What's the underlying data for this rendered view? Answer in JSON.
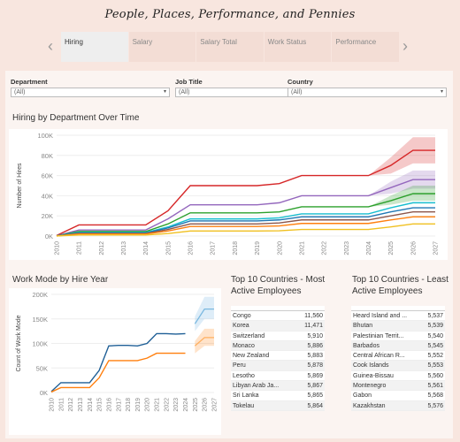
{
  "title": "People, Places, Performance, and Pennies",
  "nav": {
    "prev_icon": "‹",
    "next_icon": "›"
  },
  "tabs": [
    {
      "label": "Hiring",
      "active": true
    },
    {
      "label": "Salary",
      "active": false
    },
    {
      "label": "Salary Total",
      "active": false
    },
    {
      "label": "Work Status",
      "active": false
    },
    {
      "label": "Performance",
      "active": false
    }
  ],
  "filters": [
    {
      "label": "Department",
      "value": "(All)"
    },
    {
      "label": "Job Title",
      "value": "(All)"
    },
    {
      "label": "Country",
      "value": "(All)"
    }
  ],
  "hiring_chart": {
    "title": "Hiring by Department Over Time",
    "ylabel": "Number of Hires",
    "yticks": [
      "100K",
      "80K",
      "60K",
      "40K",
      "20K",
      "0K"
    ]
  },
  "work_mode_chart": {
    "title": "Work Mode by Hire Year",
    "ylabel": "Count of Work Mode",
    "yticks": [
      "200K",
      "150K",
      "100K",
      "50K",
      "0K"
    ]
  },
  "most_active": {
    "title": "Top 10 Countries - Most Active Employees",
    "rows": [
      {
        "country": "Congo",
        "value": "11,560"
      },
      {
        "country": "Korea",
        "value": "11,471"
      },
      {
        "country": "Switzerland",
        "value": "5,910"
      },
      {
        "country": "Monaco",
        "value": "5,886"
      },
      {
        "country": "New Zealand",
        "value": "5,883"
      },
      {
        "country": "Peru",
        "value": "5,878"
      },
      {
        "country": "Lesotho",
        "value": "5,869"
      },
      {
        "country": "Libyan Arab Ja...",
        "value": "5,867"
      },
      {
        "country": "Sri Lanka",
        "value": "5,865"
      },
      {
        "country": "Tokelau",
        "value": "5,864"
      }
    ]
  },
  "least_active": {
    "title": "Top 10 Countries - Least Active Employees",
    "rows": [
      {
        "country": "Heard Island and ...",
        "value": "5,537"
      },
      {
        "country": "Bhutan",
        "value": "5,539"
      },
      {
        "country": "Palestinian Territ...",
        "value": "5,540"
      },
      {
        "country": "Barbados",
        "value": "5,545"
      },
      {
        "country": "Central African R...",
        "value": "5,552"
      },
      {
        "country": "Cook Islands",
        "value": "5,553"
      },
      {
        "country": "Guinea-Bissau",
        "value": "5,560"
      },
      {
        "country": "Montenegro",
        "value": "5,561"
      },
      {
        "country": "Gabon",
        "value": "5,568"
      },
      {
        "country": "Kazakhstan",
        "value": "5,576"
      }
    ]
  },
  "chart_data": [
    {
      "type": "line",
      "title": "Hiring by Department Over Time",
      "ylabel": "Number of Hires",
      "ylim": [
        0,
        100000
      ],
      "x": [
        "2010",
        "2011",
        "2012",
        "2013",
        "2014",
        "2015",
        "2016",
        "2017",
        "2018",
        "2019",
        "2020",
        "2021",
        "2022",
        "2023",
        "2024",
        "2025",
        "2026",
        "2027"
      ],
      "actual_through": "2024",
      "series": [
        {
          "color": "#d62728",
          "values": [
            500,
            11000,
            11000,
            11000,
            11000,
            25000,
            50000,
            50000,
            50000,
            50000,
            52000,
            60000,
            60000,
            60000,
            60000,
            70000,
            85000,
            85000
          ],
          "band": [
            [
              60000,
              60000
            ],
            [
              62000,
              78000
            ],
            [
              72000,
              98000
            ],
            [
              72000,
              98000
            ]
          ]
        },
        {
          "color": "#9467bd",
          "values": [
            300,
            6000,
            6000,
            6000,
            6000,
            17000,
            31000,
            31000,
            31000,
            31000,
            33000,
            40000,
            40000,
            40000,
            40000,
            48000,
            56000,
            56000
          ],
          "band": [
            [
              40000,
              40000
            ],
            [
              42000,
              54000
            ],
            [
              47000,
              65000
            ],
            [
              47000,
              65000
            ]
          ]
        },
        {
          "color": "#2ca02c",
          "values": [
            200,
            4500,
            4500,
            4500,
            4500,
            12000,
            23000,
            23000,
            23000,
            23000,
            24000,
            29000,
            29000,
            29000,
            29000,
            35000,
            42000,
            42000
          ],
          "band": [
            [
              29000,
              29000
            ],
            [
              31000,
              40000
            ],
            [
              35000,
              50000
            ],
            [
              35000,
              50000
            ]
          ]
        },
        {
          "color": "#17becf",
          "values": [
            150,
            3500,
            3500,
            3500,
            3500,
            9000,
            17000,
            17000,
            17000,
            17000,
            18000,
            22000,
            22000,
            22000,
            22000,
            28000,
            33000,
            33000
          ]
        },
        {
          "color": "#1f77b4",
          "values": [
            120,
            3000,
            3000,
            3000,
            3000,
            8000,
            15000,
            15000,
            15000,
            15000,
            16000,
            19000,
            19000,
            19000,
            19000,
            24000,
            28000,
            28000
          ]
        },
        {
          "color": "#8c564b",
          "values": [
            100,
            2500,
            2500,
            2500,
            2500,
            6500,
            12000,
            12000,
            12000,
            12000,
            13000,
            16000,
            16000,
            16000,
            16000,
            20000,
            24000,
            24000
          ]
        },
        {
          "color": "#ff7f0e",
          "values": [
            80,
            2000,
            2000,
            2000,
            2000,
            5000,
            9500,
            9500,
            9500,
            9500,
            10000,
            12500,
            12500,
            12500,
            12500,
            16000,
            19000,
            19000
          ]
        },
        {
          "color": "#f0c020",
          "values": [
            50,
            1000,
            1000,
            1000,
            1000,
            2500,
            5000,
            5000,
            5000,
            5000,
            5200,
            6500,
            6500,
            6500,
            6500,
            9000,
            12000,
            12000
          ]
        }
      ]
    },
    {
      "type": "line",
      "title": "Work Mode by Hire Year",
      "ylabel": "Count of Work Mode",
      "ylim": [
        0,
        200000
      ],
      "x": [
        "2010",
        "2011",
        "2012",
        "2013",
        "2014",
        "2015",
        "2016",
        "2017",
        "2018",
        "2019",
        "2020",
        "2021",
        "2022",
        "2023",
        "2024",
        "2025",
        "2026",
        "2027"
      ],
      "actual_through": "2024",
      "series": [
        {
          "color": "#1f5f96",
          "values": [
            2000,
            20000,
            20000,
            20000,
            20000,
            45000,
            95000,
            96000,
            96000,
            95000,
            100000,
            120000,
            120000,
            119000,
            120000,
            null,
            null,
            null
          ],
          "forecast_values": [
            140000,
            170000,
            170000
          ],
          "forecast_band": [
            [
              125000,
              155000
            ],
            [
              150000,
              195000
            ],
            [
              150000,
              195000
            ]
          ]
        },
        {
          "color": "#ff7f0e",
          "values": [
            1000,
            10000,
            10000,
            10000,
            10000,
            30000,
            65000,
            65000,
            65000,
            65000,
            70000,
            80000,
            80000,
            80000,
            80000,
            null,
            null,
            null
          ],
          "forecast_values": [
            95000,
            112000,
            112000
          ],
          "forecast_band": [
            [
              80000,
              105000
            ],
            [
              95000,
              130000
            ],
            [
              95000,
              130000
            ]
          ]
        }
      ]
    }
  ]
}
